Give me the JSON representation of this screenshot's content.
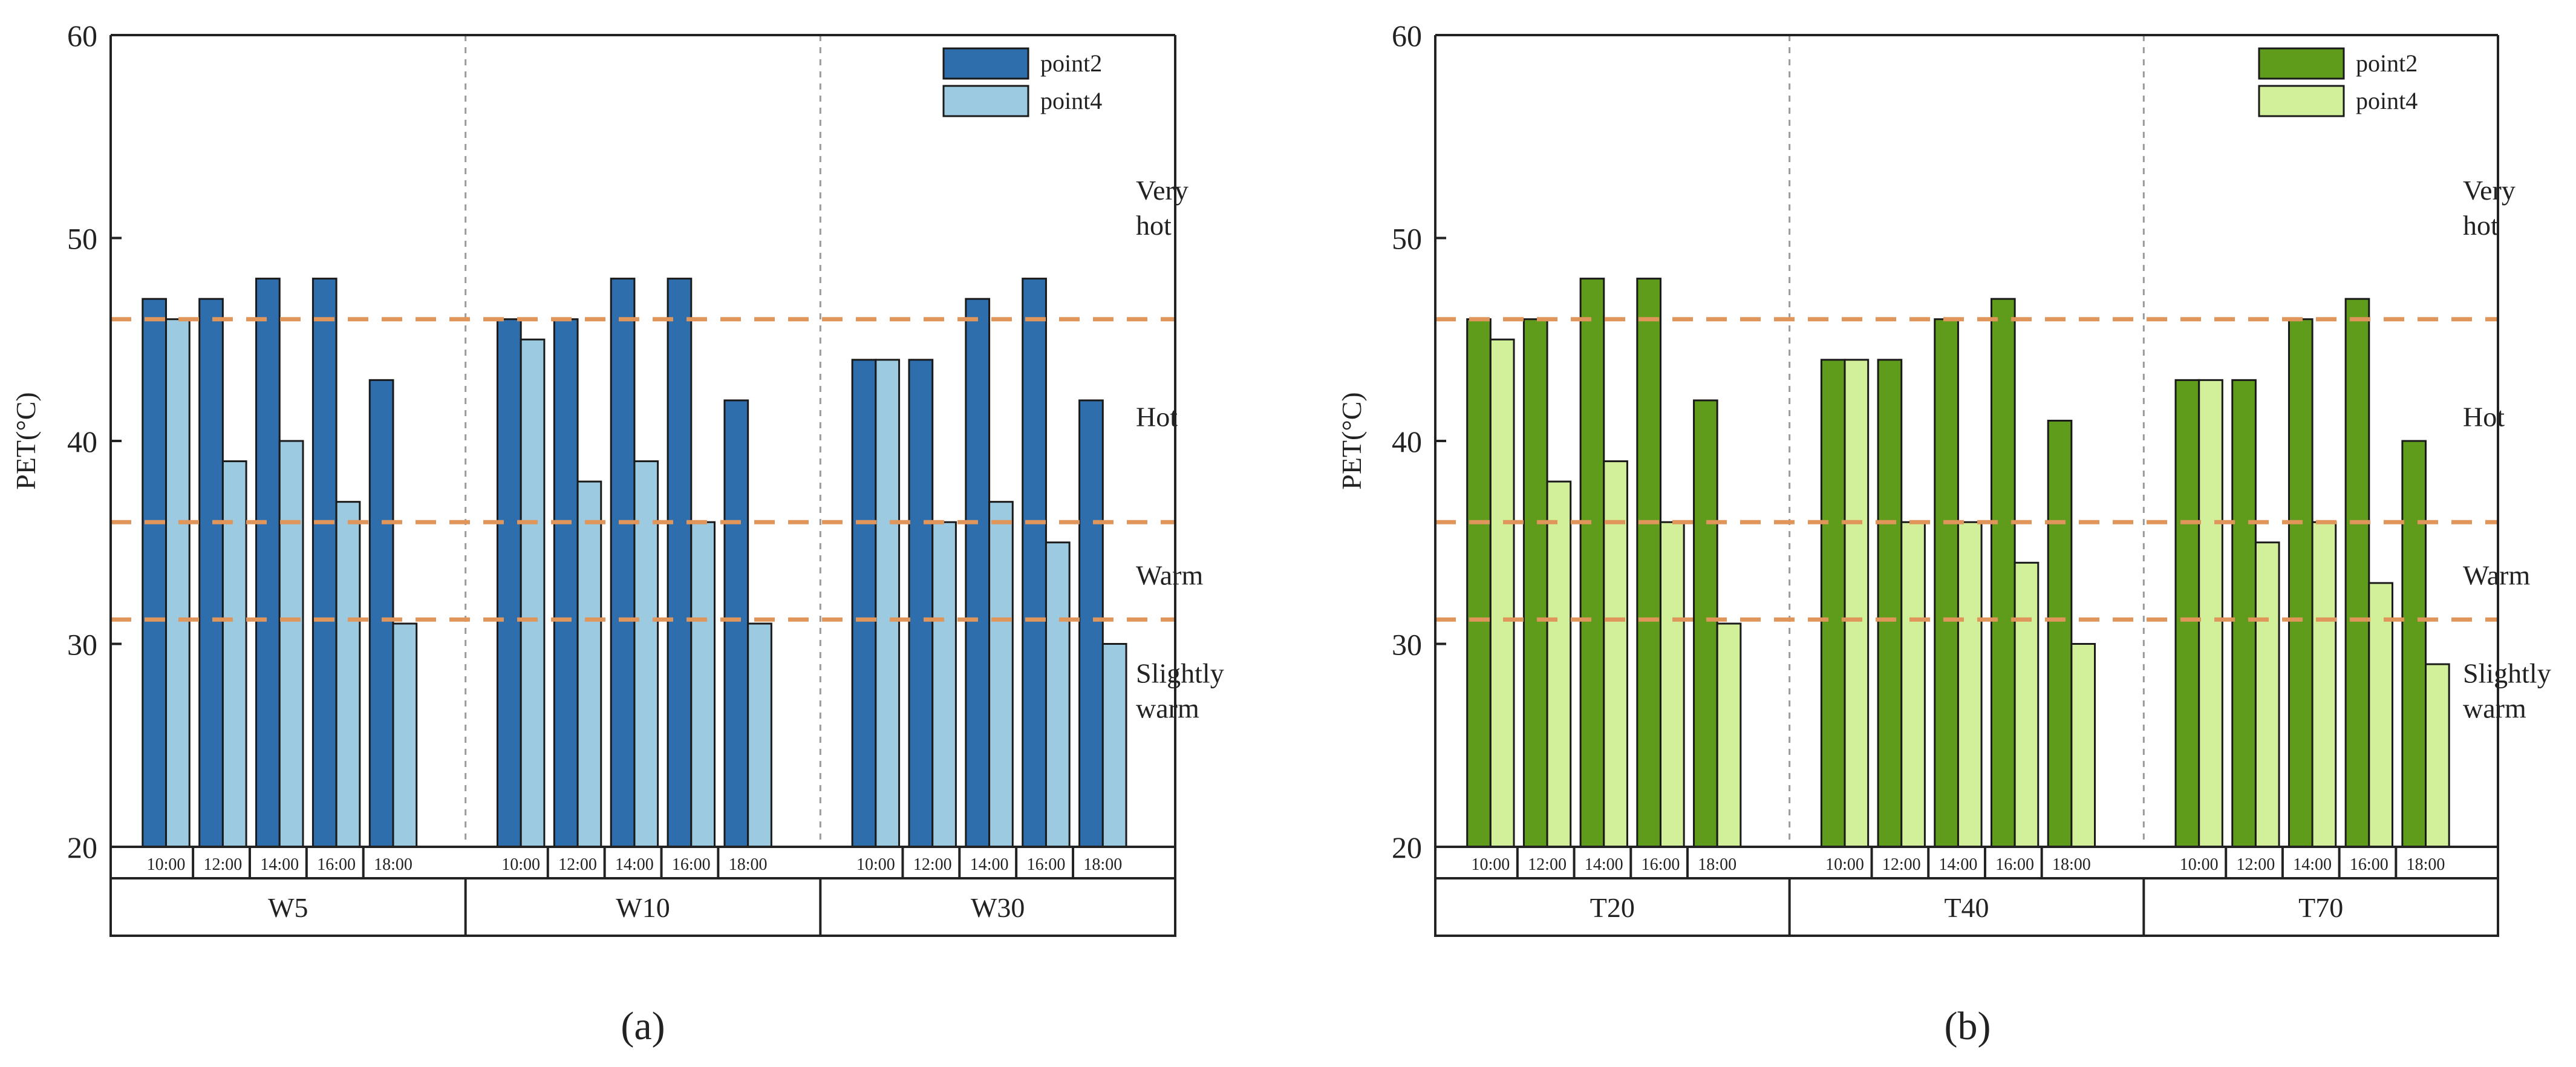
{
  "figure": {
    "panel_labels": [
      "(a)",
      "(b)"
    ]
  },
  "chart_data": [
    {
      "type": "bar",
      "panel": "(a)",
      "ylabel": "PET(°C)",
      "ylim": [
        20,
        60
      ],
      "yticks": [
        "20",
        "30",
        "40",
        "50",
        "60"
      ],
      "groups": [
        "W5",
        "W10",
        "W30"
      ],
      "time_labels": [
        "10:00",
        "12:00",
        "14:00",
        "16:00",
        "18:00"
      ],
      "legend_position": "top-right",
      "series": [
        {
          "name": "point2",
          "color": "#2e6ead",
          "values": [
            [
              47,
              47,
              48,
              48,
              43
            ],
            [
              46,
              46,
              48,
              48,
              42
            ],
            [
              44,
              44,
              47,
              48,
              42
            ]
          ]
        },
        {
          "name": "point4",
          "color": "#9ccae0",
          "values": [
            [
              46,
              39,
              40,
              37,
              31
            ],
            [
              45,
              38,
              39,
              36,
              31
            ],
            [
              44,
              36,
              37,
              35,
              30
            ]
          ]
        }
      ],
      "thresholds": [
        {
          "value": 46,
          "color": "#e0955a"
        },
        {
          "value": 36,
          "color": "#e0955a"
        },
        {
          "value": 31.2,
          "color": "#e0955a"
        }
      ],
      "zones": [
        {
          "lines": [
            "Very",
            "hot"
          ],
          "value": 51.5
        },
        {
          "lines": [
            "Hot"
          ],
          "value": 41.2
        },
        {
          "lines": [
            "Warm"
          ],
          "value": 33.4
        },
        {
          "lines": [
            "Slightly",
            "warm"
          ],
          "value": 27.7
        }
      ]
    },
    {
      "type": "bar",
      "panel": "(b)",
      "ylabel": "PET(°C)",
      "ylim": [
        20,
        60
      ],
      "yticks": [
        "20",
        "30",
        "40",
        "50",
        "60"
      ],
      "groups": [
        "T20",
        "T40",
        "T70"
      ],
      "time_labels": [
        "10:00",
        "12:00",
        "14:00",
        "16:00",
        "18:00"
      ],
      "legend_position": "top-right",
      "series": [
        {
          "name": "point2",
          "color": "#5f9c1c",
          "values": [
            [
              46,
              46,
              48,
              48,
              42
            ],
            [
              44,
              44,
              46,
              47,
              41
            ],
            [
              43,
              43,
              46,
              47,
              40
            ]
          ]
        },
        {
          "name": "point4",
          "color": "#d2ef9a",
          "values": [
            [
              45,
              38,
              39,
              36,
              31
            ],
            [
              44,
              36,
              36,
              34,
              30
            ],
            [
              43,
              35,
              36,
              33,
              29
            ]
          ]
        }
      ],
      "thresholds": [
        {
          "value": 46,
          "color": "#e0955a"
        },
        {
          "value": 36,
          "color": "#e0955a"
        },
        {
          "value": 31.2,
          "color": "#e0955a"
        }
      ],
      "zones": [
        {
          "lines": [
            "Very",
            "hot"
          ],
          "value": 51.5
        },
        {
          "lines": [
            "Hot"
          ],
          "value": 41.2
        },
        {
          "lines": [
            "Warm"
          ],
          "value": 33.4
        },
        {
          "lines": [
            "Slightly",
            "warm"
          ],
          "value": 27.7
        }
      ]
    }
  ]
}
